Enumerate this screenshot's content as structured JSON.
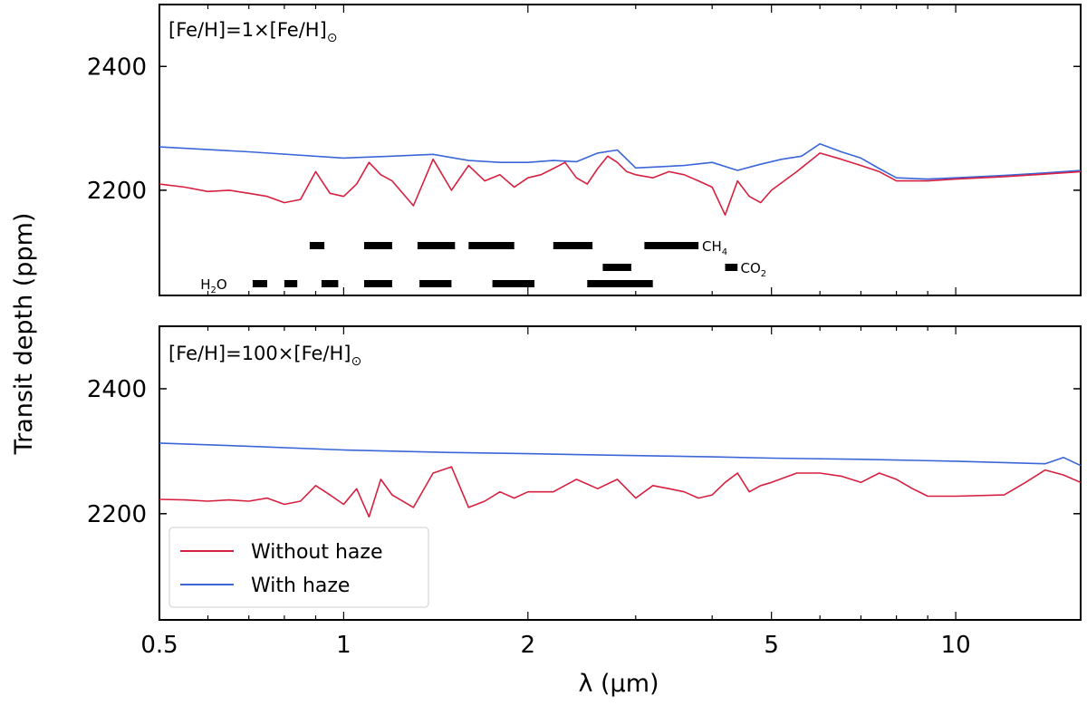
{
  "chart_data": {
    "type": "line",
    "xlabel": "λ (μm)",
    "ylabel": "Transit depth (ppm)",
    "x_scale": "log",
    "xlim": [
      0.5,
      16.0
    ],
    "xticks": [
      {
        "value": 0.5,
        "label": "0.5"
      },
      {
        "value": 1,
        "label": "1"
      },
      {
        "value": 2,
        "label": "2"
      },
      {
        "value": 5,
        "label": "5"
      },
      {
        "value": 10,
        "label": "10"
      }
    ],
    "ylim": [
      2030,
      2500
    ],
    "yticks": [
      2200,
      2400
    ],
    "legend": {
      "placement": "lower-left",
      "entries": [
        {
          "label": "Without haze",
          "color": "#d6203f"
        },
        {
          "label": "With haze",
          "color": "#3a66d9"
        }
      ]
    },
    "colors": {
      "without_haze": "#d6203f",
      "with_haze": "#3a66d9",
      "points": "#e36d7a",
      "errorbar": "#555555"
    },
    "panels": [
      {
        "title_parts": {
          "pre": "[Fe/H]=1×[Fe/H]",
          "sub": "⊙"
        },
        "series": [
          {
            "name": "Without haze",
            "x": [
              0.5,
              0.55,
              0.6,
              0.65,
              0.7,
              0.75,
              0.8,
              0.85,
              0.9,
              0.95,
              1.0,
              1.05,
              1.1,
              1.15,
              1.2,
              1.3,
              1.4,
              1.5,
              1.6,
              1.7,
              1.8,
              1.9,
              2.0,
              2.1,
              2.2,
              2.3,
              2.4,
              2.5,
              2.6,
              2.7,
              2.8,
              2.9,
              3.0,
              3.2,
              3.4,
              3.6,
              3.8,
              4.0,
              4.2,
              4.4,
              4.6,
              4.8,
              5.0,
              5.5,
              6.0,
              6.5,
              7.0,
              7.5,
              8.0,
              9.0,
              10.0,
              12.0,
              14.0,
              16.0
            ],
            "values": [
              2210,
              2205,
              2198,
              2200,
              2195,
              2190,
              2180,
              2185,
              2230,
              2195,
              2190,
              2210,
              2245,
              2225,
              2215,
              2175,
              2250,
              2200,
              2240,
              2215,
              2225,
              2205,
              2220,
              2225,
              2235,
              2245,
              2220,
              2210,
              2235,
              2255,
              2245,
              2230,
              2225,
              2220,
              2230,
              2225,
              2215,
              2205,
              2160,
              2215,
              2190,
              2180,
              2200,
              2230,
              2260,
              2250,
              2240,
              2230,
              2215,
              2215,
              2218,
              2222,
              2226,
              2230
            ]
          },
          {
            "name": "With haze",
            "x": [
              0.5,
              0.7,
              1.0,
              1.2,
              1.4,
              1.6,
              1.8,
              2.0,
              2.2,
              2.4,
              2.6,
              2.8,
              3.0,
              3.3,
              3.6,
              4.0,
              4.4,
              4.8,
              5.2,
              5.6,
              6.0,
              6.5,
              7.0,
              7.5,
              8.0,
              9.0,
              10.0,
              12.0,
              14.0,
              16.0
            ],
            "values": [
              2270,
              2262,
              2252,
              2255,
              2258,
              2248,
              2245,
              2245,
              2248,
              2246,
              2260,
              2265,
              2236,
              2238,
              2240,
              2245,
              2232,
              2242,
              2250,
              2255,
              2275,
              2262,
              2252,
              2235,
              2220,
              2218,
              2220,
              2224,
              2228,
              2232
            ]
          }
        ],
        "molecule_bands": [
          {
            "label": "CH",
            "sub": "4",
            "row": 0,
            "label_at": 3.85,
            "bands": [
              [
                0.88,
                0.93
              ],
              [
                1.08,
                1.2
              ],
              [
                1.32,
                1.52
              ],
              [
                1.6,
                1.9
              ],
              [
                2.2,
                2.55
              ],
              [
                3.1,
                3.8
              ]
            ]
          },
          {
            "label": "CO",
            "sub": "2",
            "row": 1,
            "label_at": 4.45,
            "bands": [
              [
                2.65,
                2.95
              ],
              [
                4.2,
                4.4
              ]
            ]
          },
          {
            "label": "H",
            "sub": "2",
            "tail": "O",
            "row": 2,
            "label_at": 0.645,
            "bands": [
              [
                0.71,
                0.75
              ],
              [
                0.8,
                0.84
              ],
              [
                0.92,
                0.98
              ],
              [
                1.08,
                1.2
              ],
              [
                1.33,
                1.5
              ],
              [
                1.75,
                2.05
              ],
              [
                2.5,
                3.2
              ]
            ]
          }
        ]
      },
      {
        "title_parts": {
          "pre": "[Fe/H]=100×[Fe/H]",
          "sub": "⊙"
        },
        "series": [
          {
            "name": "Without haze",
            "x": [
              0.5,
              0.55,
              0.6,
              0.65,
              0.7,
              0.75,
              0.8,
              0.85,
              0.9,
              0.95,
              1.0,
              1.05,
              1.1,
              1.15,
              1.2,
              1.3,
              1.4,
              1.5,
              1.6,
              1.7,
              1.8,
              1.9,
              2.0,
              2.2,
              2.4,
              2.6,
              2.8,
              3.0,
              3.2,
              3.4,
              3.6,
              3.8,
              4.0,
              4.2,
              4.4,
              4.6,
              4.8,
              5.0,
              5.5,
              6.0,
              6.5,
              7.0,
              7.5,
              8.0,
              8.5,
              9.0,
              10.0,
              12.0,
              13.0,
              14.0,
              15.0,
              16.0
            ],
            "values": [
              2223,
              2222,
              2220,
              2222,
              2220,
              2225,
              2215,
              2220,
              2245,
              2230,
              2215,
              2240,
              2195,
              2255,
              2230,
              2210,
              2265,
              2275,
              2210,
              2220,
              2235,
              2225,
              2235,
              2235,
              2255,
              2240,
              2255,
              2225,
              2245,
              2240,
              2235,
              2225,
              2230,
              2250,
              2265,
              2235,
              2245,
              2250,
              2265,
              2265,
              2260,
              2250,
              2265,
              2255,
              2240,
              2228,
              2228,
              2230,
              2250,
              2270,
              2262,
              2250
            ]
          },
          {
            "name": "With haze",
            "x": [
              0.5,
              0.7,
              1.0,
              1.5,
              2.0,
              3.0,
              4.0,
              5.0,
              7.0,
              10.0,
              14.0,
              15.0,
              16.0
            ],
            "values": [
              2313,
              2308,
              2302,
              2298,
              2296,
              2293,
              2291,
              2289,
              2287,
              2284,
              2280,
              2290,
              2277
            ]
          }
        ]
      }
    ]
  }
}
